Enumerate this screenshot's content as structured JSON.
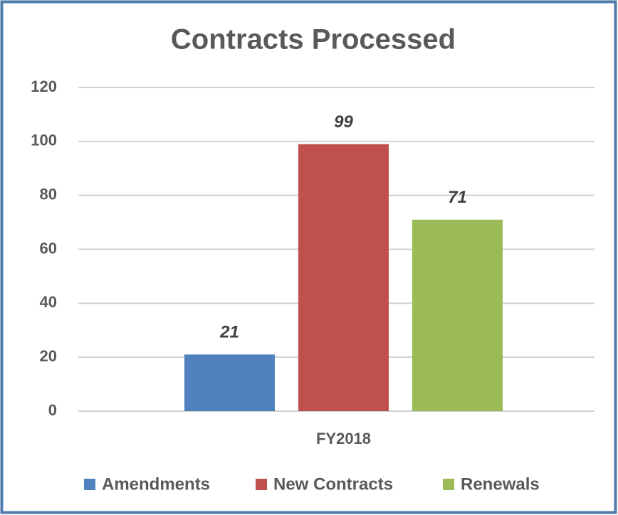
{
  "chart_data": {
    "type": "bar",
    "title": "Contracts Processed",
    "categories": [
      "FY2018"
    ],
    "series": [
      {
        "name": "Amendments",
        "color": "#4f81bd",
        "values": [
          21
        ]
      },
      {
        "name": "New Contracts",
        "color": "#c0504d",
        "values": [
          99
        ]
      },
      {
        "name": "Renewals",
        "color": "#9bbb59",
        "values": [
          71
        ]
      }
    ],
    "ylim": [
      0,
      120
    ],
    "yticks": [
      0,
      20,
      40,
      60,
      80,
      100,
      120
    ],
    "grid": true,
    "legend": "bottom"
  }
}
